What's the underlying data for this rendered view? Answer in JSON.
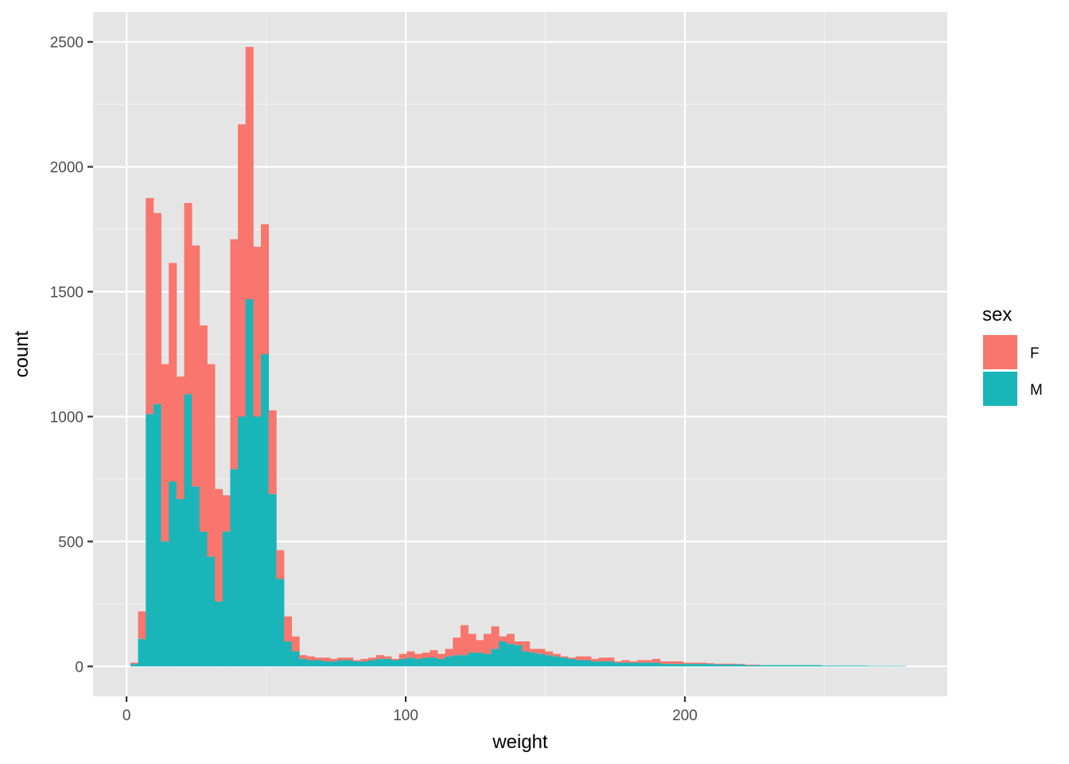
{
  "chart_data": {
    "type": "bar",
    "subtype": "stacked-histogram",
    "title": "",
    "xlabel": "weight",
    "ylabel": "count",
    "xlim": [
      -12,
      294
    ],
    "ylim": [
      -120,
      2620
    ],
    "x_ticks": [
      0,
      100,
      200
    ],
    "x_tick_labels": [
      "0",
      "100",
      "200"
    ],
    "y_ticks": [
      0,
      500,
      1000,
      1500,
      2000,
      2500
    ],
    "y_tick_labels": [
      "0",
      "500",
      "1000",
      "1500",
      "2000",
      "2500"
    ],
    "grid": true,
    "legend": {
      "title": "sex",
      "position": "right",
      "entries": [
        "F",
        "M"
      ]
    },
    "colors": {
      "panel_bg": "#e5e5e5",
      "grid": "#ffffff",
      "F": "#f8766d",
      "M": "#1ab5b8"
    },
    "bin_width": 2.75,
    "x": [
      2.75,
      5.5,
      8.25,
      11.0,
      13.75,
      16.5,
      19.25,
      22.0,
      24.75,
      27.5,
      30.25,
      33.0,
      35.75,
      38.5,
      41.25,
      44.0,
      46.75,
      49.5,
      52.25,
      55.0,
      57.75,
      60.5,
      63.25,
      66.0,
      68.75,
      71.5,
      74.25,
      77.0,
      79.75,
      82.5,
      85.25,
      88.0,
      90.75,
      93.5,
      96.25,
      99.0,
      101.75,
      104.5,
      107.25,
      110.0,
      112.75,
      115.5,
      118.25,
      121.0,
      123.75,
      126.5,
      129.25,
      132.0,
      134.75,
      137.5,
      140.25,
      143.0,
      145.75,
      148.5,
      151.25,
      154.0,
      156.75,
      159.5,
      162.25,
      165.0,
      167.75,
      170.5,
      173.25,
      176.0,
      178.75,
      181.5,
      184.25,
      187.0,
      189.75,
      192.5,
      195.25,
      198.0,
      200.75,
      203.5,
      206.25,
      209.0,
      211.75,
      214.5,
      217.25,
      220.0,
      222.75,
      225.5,
      228.25,
      231.0,
      233.75,
      236.5,
      239.25,
      242.0,
      244.75,
      247.5,
      250.25,
      253.0,
      255.75,
      258.5,
      261.25,
      264.0,
      266.75,
      269.5,
      272.25,
      275.0,
      277.75
    ],
    "series": [
      {
        "name": "M",
        "values": [
          10,
          110,
          1010,
          1050,
          500,
          740,
          670,
          1090,
          720,
          540,
          440,
          260,
          540,
          790,
          1000,
          1470,
          1000,
          1250,
          690,
          350,
          100,
          60,
          30,
          25,
          25,
          20,
          20,
          25,
          25,
          20,
          20,
          25,
          30,
          30,
          25,
          30,
          35,
          30,
          35,
          35,
          30,
          40,
          45,
          45,
          55,
          55,
          50,
          70,
          100,
          90,
          85,
          60,
          55,
          50,
          45,
          40,
          35,
          30,
          25,
          25,
          20,
          20,
          20,
          15,
          15,
          15,
          15,
          15,
          15,
          10,
          10,
          10,
          10,
          10,
          10,
          10,
          8,
          8,
          8,
          8,
          5,
          5,
          5,
          5,
          5,
          5,
          5,
          5,
          5,
          5,
          3,
          3,
          3,
          3,
          3,
          3,
          2,
          2,
          2,
          2,
          2
        ]
      },
      {
        "name": "F",
        "values": [
          5,
          110,
          865,
          765,
          710,
          875,
          490,
          765,
          965,
          825,
          770,
          450,
          145,
          920,
          1170,
          1010,
          680,
          520,
          335,
          115,
          100,
          60,
          15,
          15,
          10,
          15,
          10,
          10,
          10,
          5,
          10,
          10,
          15,
          10,
          5,
          20,
          25,
          20,
          20,
          30,
          20,
          30,
          70,
          120,
          75,
          50,
          80,
          90,
          20,
          40,
          15,
          40,
          15,
          20,
          15,
          10,
          5,
          5,
          15,
          15,
          10,
          15,
          15,
          5,
          10,
          5,
          10,
          10,
          15,
          10,
          10,
          10,
          5,
          5,
          5,
          3,
          3,
          3,
          3,
          2,
          2,
          2,
          0,
          0,
          0,
          0,
          0,
          0,
          0,
          0,
          0,
          0,
          0,
          0,
          0,
          0,
          0,
          0,
          0,
          0,
          0
        ]
      }
    ]
  }
}
